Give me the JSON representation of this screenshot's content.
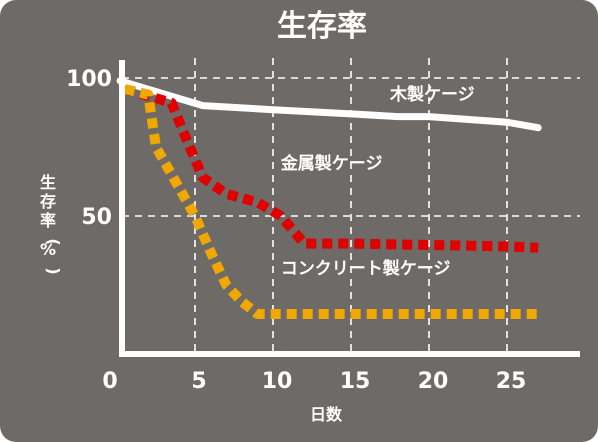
{
  "chart_data": {
    "type": "line",
    "title": "生存率",
    "xlabel": "日数",
    "ylabel": "生存率(%)",
    "xlim": [
      0,
      29
    ],
    "ylim": [
      0,
      100
    ],
    "xticks": [
      0,
      5,
      10,
      15,
      20,
      25
    ],
    "yticks": [
      50,
      100
    ],
    "grid": true,
    "colors": {
      "background": "#6e6a68",
      "axis": "#ffffff",
      "grid": "#ffffff"
    },
    "series": [
      {
        "name": "木製ケージ",
        "color": "#ffffff",
        "style": "solid",
        "points": [
          [
            0.2,
            99
          ],
          [
            5.5,
            90
          ],
          [
            10,
            88.5
          ],
          [
            15,
            87
          ],
          [
            18,
            86
          ],
          [
            20,
            86
          ],
          [
            25,
            84
          ],
          [
            27,
            82
          ]
        ],
        "label_at": [
          17.5,
          92
        ]
      },
      {
        "name": "金属製ケージ",
        "color": "#e00000",
        "style": "dotted",
        "points": [
          [
            0.5,
            96
          ],
          [
            3.5,
            91
          ],
          [
            4.5,
            77
          ],
          [
            5.5,
            64
          ],
          [
            7,
            58
          ],
          [
            9,
            55
          ],
          [
            10.5,
            50
          ],
          [
            12,
            40
          ],
          [
            15,
            40
          ],
          [
            20,
            39.5
          ],
          [
            25,
            39
          ],
          [
            27,
            38.5
          ]
        ],
        "label_at": [
          10.5,
          67
        ]
      },
      {
        "name": "コンクリート製ケージ",
        "color": "#f0a800",
        "style": "dotted",
        "points": [
          [
            0.5,
            96
          ],
          [
            2,
            94
          ],
          [
            2.5,
            75
          ],
          [
            4,
            60
          ],
          [
            5,
            50
          ],
          [
            6,
            37
          ],
          [
            7,
            25
          ],
          [
            8,
            19
          ],
          [
            9,
            14.5
          ],
          [
            12,
            14.5
          ],
          [
            20,
            14.5
          ],
          [
            27,
            14.5
          ]
        ],
        "label_at": [
          10.5,
          29
        ]
      }
    ]
  }
}
